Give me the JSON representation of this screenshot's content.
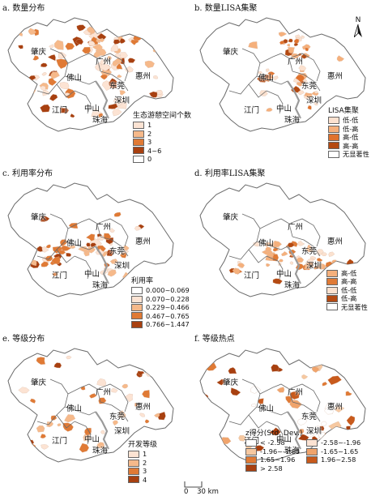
{
  "panels": [
    {
      "label": "a. 数量分布",
      "legend": {
        "title": "生态游憩空间个数",
        "items": [
          {
            "label": "1",
            "color": "#fce3d3"
          },
          {
            "label": "2",
            "color": "#f6b98a"
          },
          {
            "label": "3",
            "color": "#e07a35"
          },
          {
            "label": "4~6",
            "color": "#a84010"
          },
          {
            "label": "0",
            "color": "#ffffff"
          }
        ]
      }
    },
    {
      "label": "b. 数量LISA集聚",
      "legend": {
        "title": "LISA集聚",
        "items": [
          {
            "label": "低-低",
            "color": "#fbe1cf"
          },
          {
            "label": "低-高",
            "color": "#f5b07c"
          },
          {
            "label": "高-低",
            "color": "#e0722d"
          },
          {
            "label": "高-高",
            "color": "#b44a12"
          },
          {
            "label": "无显著性",
            "color": "#ffffff"
          }
        ]
      }
    },
    {
      "label": "c. 利用率分布",
      "legend": {
        "title": "利用率",
        "items": [
          {
            "label": "0.000~0.069",
            "color": "#ffffff"
          },
          {
            "label": "0.070~0.228",
            "color": "#fce3d3"
          },
          {
            "label": "0.229~0.466",
            "color": "#f6b98a"
          },
          {
            "label": "0.467~0.765",
            "color": "#e07a35"
          },
          {
            "label": "0.766~1.447",
            "color": "#a84010"
          }
        ]
      }
    },
    {
      "label": "d. 利用率LISA集聚",
      "legend": {
        "title": "",
        "items": [
          {
            "label": "高-低",
            "color": "#f5b07c"
          },
          {
            "label": "高-高",
            "color": "#e07a35"
          },
          {
            "label": "低-低",
            "color": "#fbe1cf"
          },
          {
            "label": "低-高",
            "color": "#b44a12"
          },
          {
            "label": "无显著性",
            "color": "#ffffff"
          }
        ]
      }
    },
    {
      "label": "e. 等级分布",
      "legend": {
        "title": "开发等级",
        "items": [
          {
            "label": "1",
            "color": "#fce3d3"
          },
          {
            "label": "2",
            "color": "#f6b98a"
          },
          {
            "label": "3",
            "color": "#e07a35"
          },
          {
            "label": "4",
            "color": "#a84010"
          }
        ]
      }
    },
    {
      "label": "f. 等级热点",
      "legend": {
        "title": "z得分(Std. Dev.)",
        "items": [
          {
            "label": "< -2.58",
            "color": "#ffffff"
          },
          {
            "label": "-2.58~-1.96",
            "color": "#fce3d3"
          },
          {
            "label": "-1.96~-1.65",
            "color": "#f6c8a0"
          },
          {
            "label": "-1.65~1.65",
            "color": "#f0a46c"
          },
          {
            "label": "1.65~1.96",
            "color": "#e07a35"
          },
          {
            "label": "1.96~2.58",
            "color": "#c85a1c"
          },
          {
            "label": "> 2.58",
            "color": "#a84010"
          }
        ]
      }
    }
  ],
  "cities": {
    "zhaoqing": "肇庆",
    "guangzhou": "广州",
    "foshan": "佛山",
    "huizhou": "惠州",
    "dongguan": "东莞",
    "shenzhen": "深圳",
    "zhongshan": "中山",
    "jiangmen": "江门",
    "zhuhai": "珠海"
  },
  "north_label": "N",
  "scale": {
    "ticks": [
      "0",
      "30"
    ],
    "unit": "km"
  },
  "colors": {
    "outline": "#6a6a6a",
    "border": "#b8b8b8",
    "water": "#ffffff"
  }
}
